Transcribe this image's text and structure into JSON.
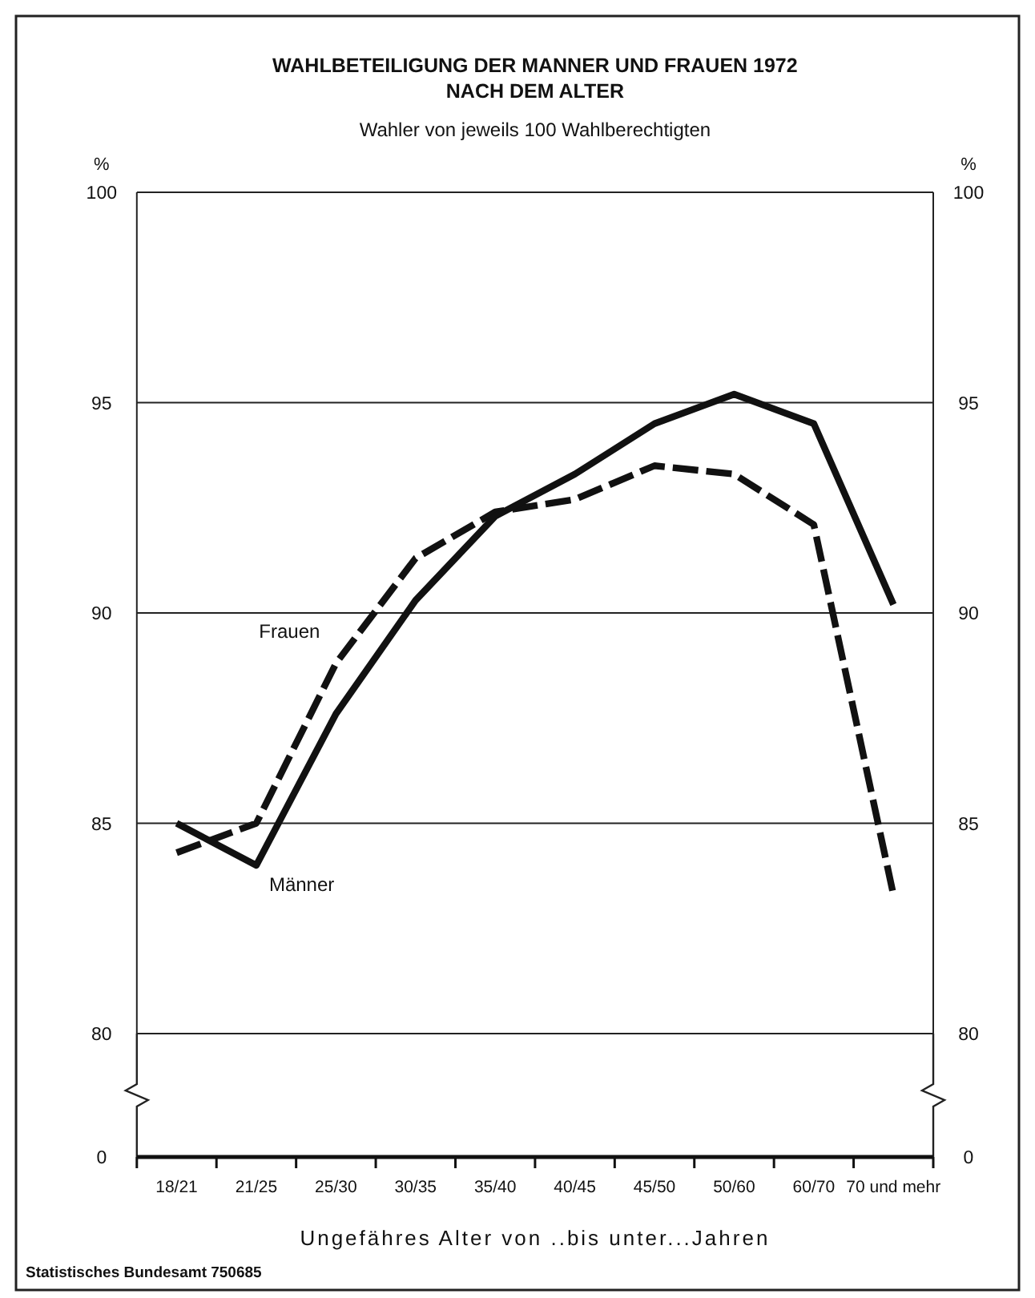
{
  "chart_data": {
    "type": "line",
    "title": "WAHLBETEILIGUNG DER MANNER UND FRAUEN 1972\nNACH DEM ALTER",
    "subtitle": "Wahler von jeweils 100 Wahlberechtigten",
    "xlabel": "Ungefähres Alter von ..bis unter...Jahren",
    "ylabel": "%",
    "y2label": "%",
    "categories": [
      "18/21",
      "21/25",
      "25/30",
      "30/35",
      "35/40",
      "40/45",
      "45/50",
      "50/60",
      "60/70",
      "70 und mehr"
    ],
    "series": [
      {
        "name": "Frauen",
        "color": "#111111",
        "line_style": "dashed",
        "values": [
          84.3,
          85.0,
          88.8,
          91.3,
          92.4,
          92.7,
          93.5,
          93.3,
          92.1,
          83.3
        ]
      },
      {
        "name": "Männer",
        "color": "#111111",
        "line_style": "solid",
        "values": [
          85.0,
          84.0,
          87.6,
          90.3,
          92.3,
          93.3,
          94.5,
          95.2,
          94.5,
          90.2
        ]
      }
    ],
    "ylim": [
      80,
      100
    ],
    "yticks": [
      80,
      85,
      90,
      95,
      100
    ],
    "y2lim": [
      80,
      100
    ],
    "y2ticks": [
      80,
      85,
      90,
      95,
      100
    ],
    "grid": "y",
    "annotations": [
      "Statistisches Bundesamt 750685",
      "0",
      "0"
    ]
  }
}
